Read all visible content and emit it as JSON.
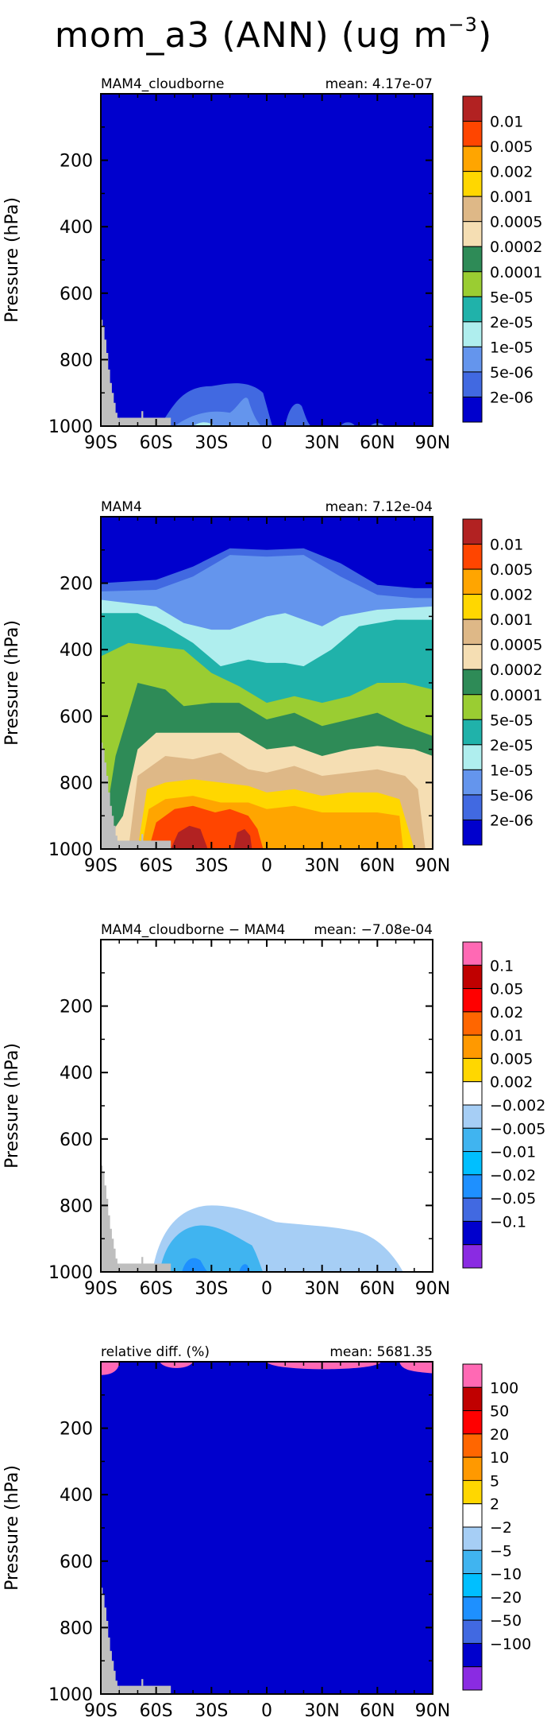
{
  "page": {
    "title_main": "mom_a3 (ANN) (ug m",
    "title_exp": "−3",
    "title_end": ")"
  },
  "chart_data": [
    {
      "type": "heatmap",
      "left_label": "MAM4_cloudborne",
      "right_label": "mean: 4.17e-07",
      "ylabel": "Pressure (hPa)",
      "xticks": [
        "90S",
        "60S",
        "30S",
        "0",
        "30N",
        "60N",
        "90N"
      ],
      "yticks": [
        "200",
        "400",
        "600",
        "800",
        "1000"
      ],
      "colorbar": [
        "0.01",
        "0.005",
        "0.002",
        "0.001",
        "0.0005",
        "0.0002",
        "0.0001",
        "5e-05",
        "2e-05",
        "1e-05",
        "5e-06",
        "2e-06"
      ],
      "colors": [
        "#b22222",
        "#ff4500",
        "#ffa500",
        "#ffd700",
        "#deb887",
        "#f5deb3",
        "#2e8b57",
        "#9acd32",
        "#20b2aa",
        "#afeeee",
        "#6495ed",
        "#4169e1",
        "#0000cd"
      ]
    },
    {
      "type": "heatmap",
      "left_label": "MAM4",
      "right_label": "mean: 7.12e-04",
      "ylabel": "Pressure (hPa)",
      "xticks": [
        "90S",
        "60S",
        "30S",
        "0",
        "30N",
        "60N",
        "90N"
      ],
      "yticks": [
        "200",
        "400",
        "600",
        "800",
        "1000"
      ],
      "colorbar": [
        "0.01",
        "0.005",
        "0.002",
        "0.001",
        "0.0005",
        "0.0002",
        "0.0001",
        "5e-05",
        "2e-05",
        "1e-05",
        "5e-06",
        "2e-06"
      ],
      "colors": [
        "#b22222",
        "#ff4500",
        "#ffa500",
        "#ffd700",
        "#deb887",
        "#f5deb3",
        "#2e8b57",
        "#9acd32",
        "#20b2aa",
        "#afeeee",
        "#6495ed",
        "#4169e1",
        "#0000cd"
      ]
    },
    {
      "type": "heatmap",
      "left_label": "MAM4_cloudborne − MAM4",
      "right_label": "mean: −7.08e-04",
      "ylabel": "Pressure (hPa)",
      "xticks": [
        "90S",
        "60S",
        "30S",
        "0",
        "30N",
        "60N",
        "90N"
      ],
      "yticks": [
        "200",
        "400",
        "600",
        "800",
        "1000"
      ],
      "colorbar": [
        "0.1",
        "0.05",
        "0.02",
        "0.01",
        "0.005",
        "0.002",
        "−0.002",
        "−0.005",
        "−0.01",
        "−0.02",
        "−0.05",
        "−0.1"
      ],
      "colors": [
        "#ff69b4",
        "#c00000",
        "#ff0000",
        "#ff6600",
        "#ff9900",
        "#ffd700",
        "#ffffff",
        "#a6cef5",
        "#40b4f0",
        "#00bfff",
        "#1e90ff",
        "#4169e1",
        "#0000cd",
        "#8a2be2"
      ]
    },
    {
      "type": "heatmap",
      "left_label": "relative diff. (%)",
      "right_label": "mean: 5681.35",
      "ylabel": "Pressure (hPa)",
      "xticks": [
        "90S",
        "60S",
        "30S",
        "0",
        "30N",
        "60N",
        "90N"
      ],
      "yticks": [
        "200",
        "400",
        "600",
        "800",
        "1000"
      ],
      "colorbar": [
        "100",
        "50",
        "20",
        "10",
        "5",
        "2",
        "−2",
        "−5",
        "−10",
        "−20",
        "−50",
        "−100"
      ],
      "colors": [
        "#ff69b4",
        "#c00000",
        "#ff0000",
        "#ff6600",
        "#ff9900",
        "#ffd700",
        "#ffffff",
        "#a6cef5",
        "#40b4f0",
        "#00bfff",
        "#1e90ff",
        "#4169e1",
        "#0000cd",
        "#8a2be2"
      ]
    }
  ]
}
